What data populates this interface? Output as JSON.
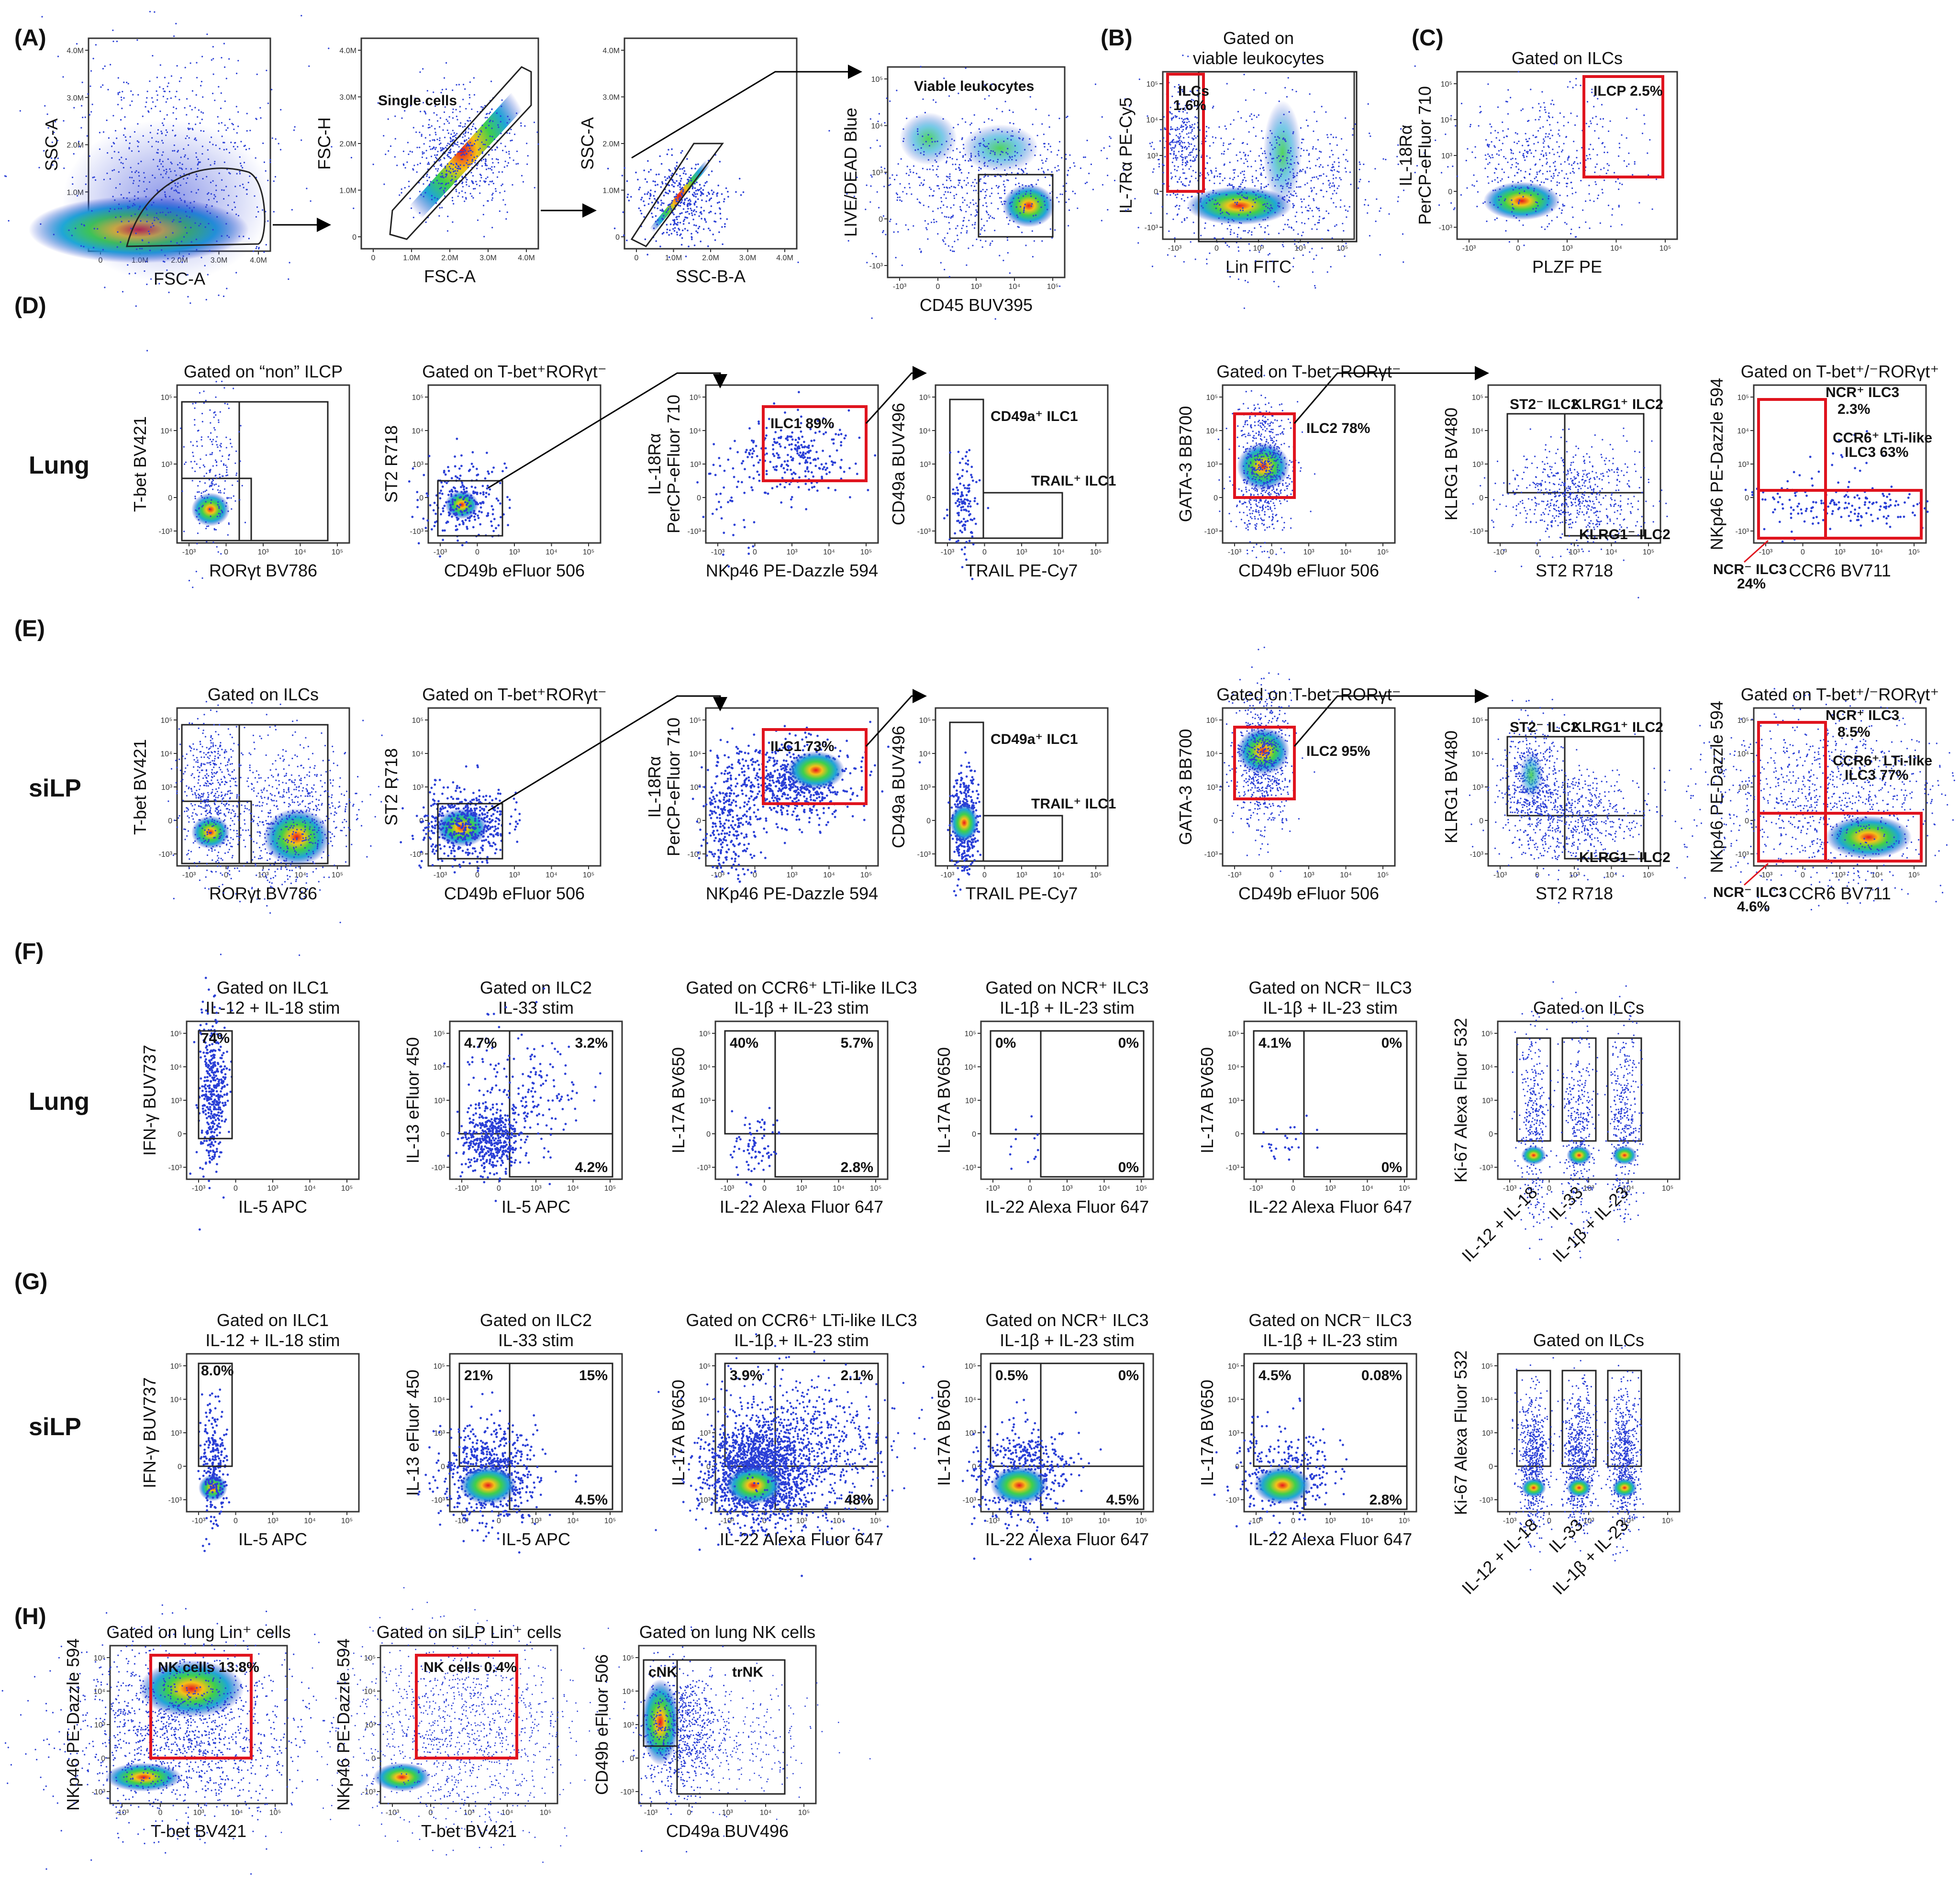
{
  "figure": {
    "panel_letters": [
      "(A)",
      "(B)",
      "(C)",
      "(D)",
      "(E)",
      "(F)",
      "(G)",
      "(H)"
    ],
    "tissues": {
      "lung": "Lung",
      "silp": "siLP"
    },
    "panel_A": {
      "plots": [
        {
          "xlabel": "FSC-A",
          "ylabel": "SSC-A",
          "gate": ""
        },
        {
          "xlabel": "FSC-A",
          "ylabel": "FSC-H",
          "gate": "Single cells"
        },
        {
          "xlabel": "SSC-B-A",
          "ylabel": "SSC-A",
          "gate": ""
        },
        {
          "xlabel": "CD45 BUV395",
          "ylabel": "LIVE/DEAD Blue",
          "gate": "Viable leukocytes"
        }
      ],
      "lin_ticks": [
        "0",
        "1.0M",
        "2.0M",
        "3.0M",
        "4.0M"
      ]
    },
    "panel_B": {
      "title1": "Gated on",
      "title2": "viable leukocytes",
      "xlabel": "Lin FITC",
      "ylabel": "IL-7Rα PE-Cy5",
      "gate1": "ILCs",
      "gate2": "1.6%"
    },
    "panel_C": {
      "title": "Gated on ILCs",
      "xlabel": "PLZF PE",
      "ylabel1": "IL-18Rα",
      "ylabel2": "PerCP-eFluor 710",
      "gate": "ILCP 2.5%"
    },
    "row_D": {
      "p1": {
        "title": "Gated on “non” ILCP",
        "xlabel": "RORγt BV786",
        "ylabel": "T-bet BV421"
      },
      "p2": {
        "title": "Gated on T-bet⁺RORγt⁻",
        "xlabel": "CD49b eFluor 506",
        "ylabel": "ST2 R718"
      },
      "p3": {
        "xlabel": "NKp46 PE-Dazzle 594",
        "ylabel1": "IL-18Rα",
        "ylabel2": "PerCP-eFluor 710",
        "gate": "ILC1 89%"
      },
      "p4": {
        "xlabel": "TRAIL PE-Cy7",
        "ylabel": "CD49a BUV496",
        "gate1": "CD49a⁺ ILC1",
        "gate2": "TRAIL⁺ ILC1"
      },
      "p5": {
        "title": "Gated on T-bet⁻RORγt⁻",
        "xlabel": "CD49b eFluor 506",
        "ylabel": "GATA-3 BB700",
        "gate": "ILC2 78%"
      },
      "p6": {
        "xlabel": "ST2 R718",
        "ylabel": "KLRG1 BV480",
        "gate1": "ST2⁻ ILC2",
        "gate2": "KLRG1⁺ ILC2",
        "gate3": "KLRG1⁻ ILC2"
      },
      "p7": {
        "title": "Gated on T-bet⁺/⁻RORγt⁺",
        "xlabel": "CCR6 BV711",
        "ylabel": "NKp46 PE-Dazzle 594",
        "gate1": "NCR⁺ ILC3",
        "gate1b": "2.3%",
        "gate2": "CCR6⁺ LTi-like",
        "gate2b": "ILC3 63%",
        "gate3": "NCR⁻ ILC3",
        "gate3b": "24%"
      }
    },
    "row_E": {
      "p1": {
        "title": "Gated on ILCs",
        "xlabel": "RORγt BV786",
        "ylabel": "T-bet BV421"
      },
      "p2": {
        "title": "Gated on T-bet⁺RORγt⁻",
        "xlabel": "CD49b eFluor 506",
        "ylabel": "ST2 R718"
      },
      "p3": {
        "xlabel": "NKp46 PE-Dazzle 594",
        "ylabel1": "IL-18Rα",
        "ylabel2": "PerCP-eFluor 710",
        "gate": "ILC1 73%"
      },
      "p4": {
        "xlabel": "TRAIL PE-Cy7",
        "ylabel": "CD49a BUV496",
        "gate1": "CD49a⁺ ILC1",
        "gate2": "TRAIL⁺ ILC1"
      },
      "p5": {
        "title": "Gated on T-bet⁻RORγt⁻",
        "xlabel": "CD49b eFluor 506",
        "ylabel": "GATA-3 BB700",
        "gate": "ILC2 95%"
      },
      "p6": {
        "xlabel": "ST2 R718",
        "ylabel": "KLRG1 BV480",
        "gate1": "ST2⁻ ILC2",
        "gate2": "KLRG1⁺ ILC2",
        "gate3": "KLRG1⁻ ILC2"
      },
      "p7": {
        "title": "Gated on T-bet⁺/⁻RORγt⁺",
        "xlabel": "CCR6 BV711",
        "ylabel": "NKp46 PE-Dazzle 594",
        "gate1": "NCR⁺ ILC3",
        "gate1b": "8.5%",
        "gate2": "CCR6⁺ LTi-like",
        "gate2b": "ILC3 77%",
        "gate3": "NCR⁻ ILC3",
        "gate3b": "4.6%"
      }
    },
    "row_F": {
      "p1": {
        "title1": "Gated on ILC1",
        "title2": "IL-12 + IL-18 stim",
        "xlabel": "IL-5 APC",
        "ylabel": "IFN-γ BUV737",
        "q1": "74%"
      },
      "p2": {
        "title1": "Gated on ILC2",
        "title2": "IL-33 stim",
        "xlabel": "IL-5 APC",
        "ylabel": "IL-13 eFluor 450",
        "q_tl": "4.7%",
        "q_tr": "3.2%",
        "q_br": "4.2%"
      },
      "p3": {
        "title1": "Gated on CCR6⁺ LTi-like ILC3",
        "title2": "IL-1β + IL-23 stim",
        "xlabel": "IL-22 Alexa Fluor 647",
        "ylabel": "IL-17A BV650",
        "q_tl": "40%",
        "q_tr": "5.7%",
        "q_br": "2.8%"
      },
      "p4": {
        "title1": "Gated on NCR⁺ ILC3",
        "title2": "IL-1β + IL-23 stim",
        "xlabel": "IL-22 Alexa Fluor 647",
        "ylabel": "IL-17A BV650",
        "q_tl": "0%",
        "q_tr": "0%",
        "q_br": "0%"
      },
      "p5": {
        "title1": "Gated on NCR⁻ ILC3",
        "title2": "IL-1β + IL-23 stim",
        "xlabel": "IL-22 Alexa Fluor 647",
        "ylabel": "IL-17A BV650",
        "q_tl": "4.1%",
        "q_tr": "0%",
        "q_br": "0%"
      },
      "p6": {
        "title": "Gated on ILCs",
        "ylabel": "Ki-67 Alexa Fluor 532",
        "cats": [
          "IL-12 + IL-18",
          "IL-33",
          "IL-1β + IL-23"
        ]
      }
    },
    "row_G": {
      "p1": {
        "title1": "Gated on ILC1",
        "title2": "IL-12 + IL-18 stim",
        "xlabel": "IL-5 APC",
        "ylabel": "IFN-γ BUV737",
        "q1": "8.0%"
      },
      "p2": {
        "title1": "Gated on ILC2",
        "title2": "IL-33 stim",
        "xlabel": "IL-5 APC",
        "ylabel": "IL-13 eFluor 450",
        "q_tl": "21%",
        "q_tr": "15%",
        "q_br": "4.5%"
      },
      "p3": {
        "title1": "Gated on CCR6⁺ LTi-like ILC3",
        "title2": "IL-1β + IL-23 stim",
        "xlabel": "IL-22 Alexa Fluor 647",
        "ylabel": "IL-17A BV650",
        "q_tl": "3.9%",
        "q_tr": "2.1%",
        "q_br": "48%"
      },
      "p4": {
        "title1": "Gated on NCR⁺ ILC3",
        "title2": "IL-1β + IL-23 stim",
        "xlabel": "IL-22 Alexa Fluor 647",
        "ylabel": "IL-17A BV650",
        "q_tl": "0.5%",
        "q_tr": "0%",
        "q_br": "4.5%"
      },
      "p5": {
        "title1": "Gated on NCR⁻ ILC3",
        "title2": "IL-1β + IL-23 stim",
        "xlabel": "IL-22 Alexa Fluor 647",
        "ylabel": "IL-17A BV650",
        "q_tl": "4.5%",
        "q_tr": "0.08%",
        "q_br": "2.8%"
      },
      "p6": {
        "title": "Gated on ILCs",
        "ylabel": "Ki-67 Alexa Fluor 532",
        "cats": [
          "IL-12 + IL-18",
          "IL-33",
          "IL-1β + IL-23"
        ]
      }
    },
    "panel_H": {
      "p1": {
        "title": "Gated on lung Lin⁺ cells",
        "xlabel": "T-bet BV421",
        "ylabel": "NKp46 PE-Dazzle 594",
        "gate": "NK cells 13.8%"
      },
      "p2": {
        "title": "Gated on siLP Lin⁺ cells",
        "xlabel": "T-bet BV421",
        "ylabel": "NKp46 PE-Dazzle 594",
        "gate": "NK cells 0.4%"
      },
      "p3": {
        "title": "Gated on lung NK cells",
        "xlabel": "CD49a BUV496",
        "ylabel": "CD49b eFluor 506",
        "gate1": "cNK",
        "gate2": "trNK"
      }
    },
    "log_ticks": [
      "-10³",
      "0",
      "10³",
      "10⁴",
      "10⁵",
      "10⁶"
    ]
  }
}
